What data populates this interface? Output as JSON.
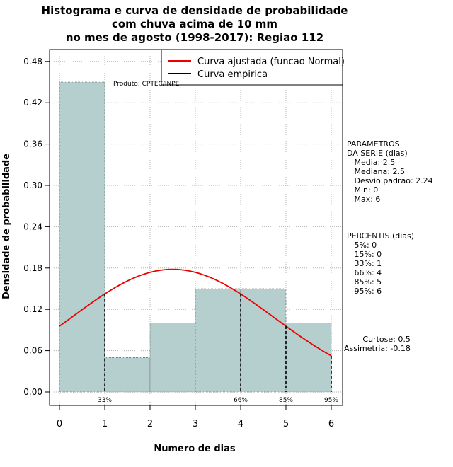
{
  "chart_data": {
    "type": "bar",
    "title": [
      "Histograma e curva de densidade de probabilidade",
      "com chuva acima de 10 mm",
      "no mes de agosto (1998-2017): Regiao 112"
    ],
    "xlabel": "Numero de dias",
    "ylabel": "Densidade de probabilidade",
    "xlim": [
      0,
      6
    ],
    "ylim": [
      0,
      0.48
    ],
    "x_ticks": [
      "0",
      "1",
      "2",
      "3",
      "4",
      "5",
      "6"
    ],
    "y_ticks": [
      "0.00",
      "0.06",
      "0.12",
      "0.18",
      "0.24",
      "0.30",
      "0.36",
      "0.42",
      "0.48"
    ],
    "bins": [
      {
        "from": 0,
        "to": 1,
        "density": 0.45
      },
      {
        "from": 1,
        "to": 2,
        "density": 0.05
      },
      {
        "from": 2,
        "to": 3,
        "density": 0.1
      },
      {
        "from": 3,
        "to": 4,
        "density": 0.15
      },
      {
        "from": 4,
        "to": 5,
        "density": 0.15
      },
      {
        "from": 5,
        "to": 6,
        "density": 0.1
      }
    ],
    "normal_fit": {
      "mean": 2.5,
      "sd": 2.24
    },
    "percentile_markers": [
      {
        "label": "33%",
        "x": 1
      },
      {
        "label": "66%",
        "x": 4
      },
      {
        "label": "85%",
        "x": 5
      },
      {
        "label": "95%",
        "x": 6
      }
    ],
    "legend": [
      {
        "label": "Curva ajustada (funcao Normal)",
        "color": "#ee0000"
      },
      {
        "label": "Curva empirica",
        "color": "#000000"
      }
    ],
    "legend_position": "top-right",
    "annotation": "Produto: CPTEC/INPE",
    "colors": {
      "bar_fill": "#b5cece",
      "fit_line": "#ee0000",
      "grid": "#b3b3b3"
    }
  },
  "stats": {
    "parametros": [
      "PARAMETROS",
      "DA SERIE (dias)",
      "   Media: 2.5",
      "   Mediana: 2.5",
      "   Desvio padrao: 2.24",
      "   Min: 0",
      "   Max: 6"
    ],
    "percentis": [
      "PERCENTIS (dias)",
      "   5%: 0",
      "   15%: 0",
      "   33%: 1",
      "   66%: 4",
      "   85%: 5",
      "   95%: 6"
    ],
    "shape": [
      "Curtose: 0.5",
      "Assimetria: -0.18"
    ]
  }
}
